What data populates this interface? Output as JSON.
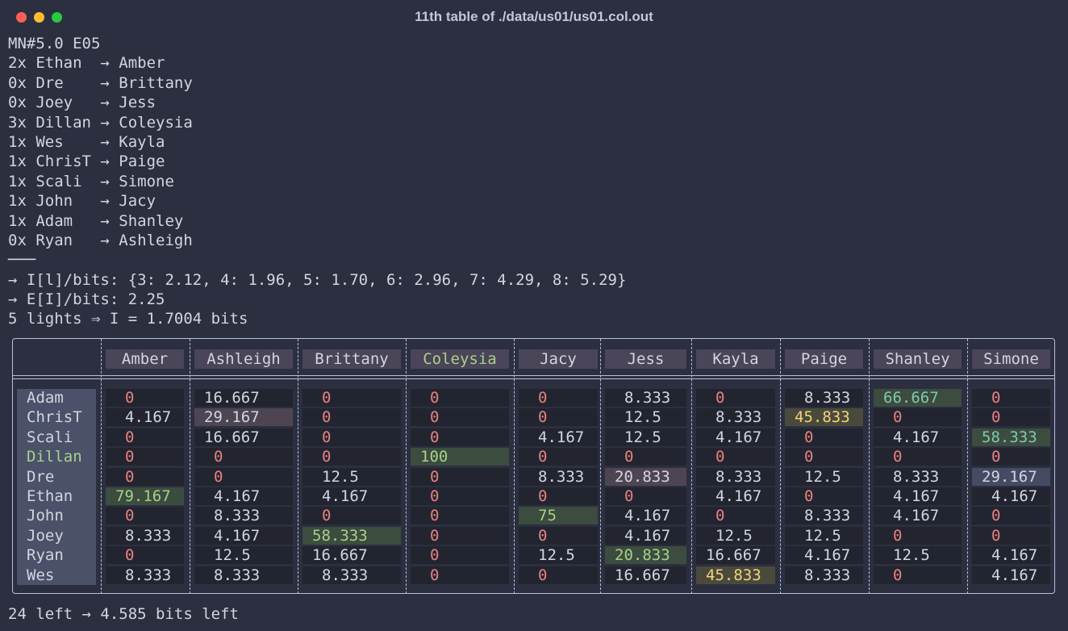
{
  "window": {
    "title": "11th table of ./data/us01/us01.col.out"
  },
  "output": {
    "lines": [
      "MN#5.0 E05",
      "2x Ethan  → Amber",
      "0x Dre    → Brittany",
      "0x Joey   → Jess",
      "3x Dillan → Coleysia",
      "1x Wes    → Kayla",
      "1x ChrisT → Paige",
      "1x Scali  → Simone",
      "1x John   → Jacy",
      "1x Adam   → Shanley",
      "0x Ryan   → Ashleigh",
      "───",
      "→ I[l]/bits: {3: 2.12, 4: 1.96, 5: 1.70, 6: 2.96, 7: 4.29, 8: 5.29}",
      "→ E[I]/bits: 2.25",
      "5 lights ⇒ I = 1.7004 bits"
    ],
    "footer": "24 left → 4.585 bits left"
  },
  "table": {
    "columns": [
      "Amber",
      "Ashleigh",
      "Brittany",
      "Coleysia",
      "Jacy",
      "Jess",
      "Kayla",
      "Paige",
      "Shanley",
      "Simone"
    ],
    "rows": [
      {
        "name": "Adam",
        "values": [
          "0",
          "16.667",
          "0",
          "0",
          "0",
          "8.333",
          "0",
          "8.333",
          "66.667",
          "0"
        ]
      },
      {
        "name": "ChrisT",
        "values": [
          "4.167",
          "29.167",
          "0",
          "0",
          "0",
          "12.5",
          "8.333",
          "45.833",
          "0",
          "0"
        ]
      },
      {
        "name": "Scali",
        "values": [
          "0",
          "16.667",
          "0",
          "0",
          "4.167",
          "12.5",
          "4.167",
          "0",
          "4.167",
          "58.333"
        ]
      },
      {
        "name": "Dillan",
        "values": [
          "0",
          "0",
          "0",
          "100",
          "0",
          "0",
          "0",
          "0",
          "0",
          "0"
        ]
      },
      {
        "name": "Dre",
        "values": [
          "0",
          "0",
          "12.5",
          "0",
          "8.333",
          "20.833",
          "8.333",
          "12.5",
          "8.333",
          "29.167"
        ]
      },
      {
        "name": "Ethan",
        "values": [
          "79.167",
          "4.167",
          "4.167",
          "0",
          "0",
          "0",
          "4.167",
          "0",
          "4.167",
          "4.167"
        ]
      },
      {
        "name": "John",
        "values": [
          "0",
          "8.333",
          "0",
          "0",
          "75",
          "4.167",
          "0",
          "8.333",
          "4.167",
          "0"
        ]
      },
      {
        "name": "Joey",
        "values": [
          "8.333",
          "4.167",
          "58.333",
          "0",
          "0",
          "4.167",
          "12.5",
          "12.5",
          "0",
          "0"
        ]
      },
      {
        "name": "Ryan",
        "values": [
          "0",
          "12.5",
          "16.667",
          "0",
          "12.5",
          "20.833",
          "16.667",
          "4.167",
          "12.5",
          "4.167"
        ]
      },
      {
        "name": "Wes",
        "values": [
          "8.333",
          "8.333",
          "8.333",
          "0",
          "0",
          "16.667",
          "45.833",
          "8.333",
          "0",
          "4.167"
        ]
      }
    ]
  },
  "colors": {
    "cell_bg": "#22252f",
    "header_bg": "#4a4558",
    "row_label_bg": "#4b5168",
    "zero_text": "#e88080",
    "green_text": "#a8d08a",
    "green_bg": "#3c4c3e",
    "teal_text": "#7ec8b0",
    "yellow_text": "#f2d37a",
    "yellow_bg": "#4a4a3c",
    "mauve_bg": "#4e4553",
    "slate_bg": "#444b62"
  },
  "highlights": [
    {
      "row": "Adam",
      "col": "Shanley",
      "style": "teal"
    },
    {
      "row": "ChrisT",
      "col": "Ashleigh",
      "style": "mauve"
    },
    {
      "row": "ChrisT",
      "col": "Paige",
      "style": "yellow"
    },
    {
      "row": "Scali",
      "col": "Simone",
      "style": "teal"
    },
    {
      "row": "Dillan",
      "col": "Coleysia",
      "style": "green"
    },
    {
      "row": "Dre",
      "col": "Jess",
      "style": "mauve"
    },
    {
      "row": "Dre",
      "col": "Simone",
      "style": "slate"
    },
    {
      "row": "Ethan",
      "col": "Amber",
      "style": "green"
    },
    {
      "row": "John",
      "col": "Jacy",
      "style": "green"
    },
    {
      "row": "Joey",
      "col": "Brittany",
      "style": "green"
    },
    {
      "row": "Ryan",
      "col": "Jess",
      "style": "green"
    },
    {
      "row": "Wes",
      "col": "Kayla",
      "style": "yellow"
    }
  ],
  "highlight_labels": [
    {
      "kind": "column",
      "name": "Coleysia",
      "style": "green"
    },
    {
      "kind": "row",
      "name": "Dillan",
      "style": "green"
    }
  ]
}
